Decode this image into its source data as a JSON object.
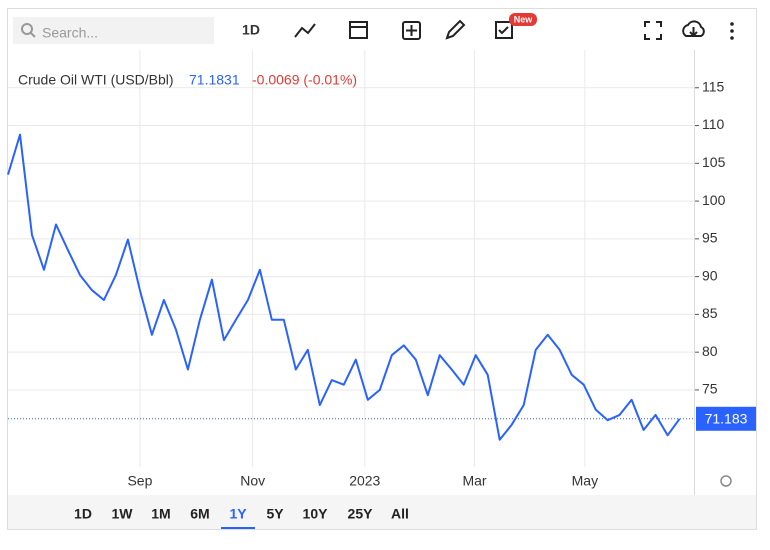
{
  "toolbar": {
    "search_placeholder": "Search...",
    "interval": "1D",
    "badge": "New"
  },
  "range_buttons": [
    "1D",
    "1W",
    "1M",
    "6M",
    "1Y",
    "5Y",
    "10Y",
    "25Y",
    "All"
  ],
  "active_range": "1Y",
  "chart_data": {
    "type": "line",
    "title": "Crude Oil WTI (USD/Bbl)",
    "last_value": 71.1831,
    "change": "-0.0069 (-0.01%)",
    "price_line": 71.183,
    "x": [
      0,
      1,
      2,
      3,
      4,
      5,
      6,
      7,
      8,
      9,
      10,
      11,
      12,
      13,
      14,
      15,
      16,
      17,
      18,
      19,
      20,
      21,
      22,
      23,
      24,
      25,
      26,
      27,
      28,
      29,
      30,
      31,
      32,
      33,
      34,
      35,
      36,
      37,
      38,
      39,
      40,
      41,
      42,
      43,
      44,
      45,
      46,
      47,
      48,
      49,
      50,
      51,
      52,
      53,
      54,
      55,
      56
    ],
    "series": [
      {
        "name": "Crude Oil WTI",
        "color": "#2962ff",
        "values": [
          103.5,
          108.8,
          95.5,
          90.9,
          96.9,
          93.5,
          90.2,
          88.2,
          86.9,
          90.2,
          94.9,
          88.2,
          82.3,
          86.9,
          83.0,
          77.7,
          84.3,
          89.6,
          81.6,
          84.3,
          86.9,
          90.9,
          84.3,
          84.3,
          77.7,
          80.3,
          73.0,
          76.3,
          75.7,
          79.0,
          73.7,
          75.0,
          79.6,
          80.9,
          79.0,
          74.3,
          79.6,
          77.7,
          75.7,
          79.6,
          77.0,
          68.4,
          70.4,
          73.0,
          80.3,
          82.3,
          80.3,
          77.0,
          75.7,
          72.4,
          71.0,
          71.7,
          73.7,
          69.7,
          71.7,
          69.0,
          71.18
        ]
      }
    ],
    "xlim": [
      0,
      57.2
    ],
    "xticks": [
      {
        "value": 11,
        "label": "Sep"
      },
      {
        "value": 20.4,
        "label": "Nov"
      },
      {
        "value": 29.75,
        "label": "2023"
      },
      {
        "value": 38.9,
        "label": "Mar"
      },
      {
        "value": 48.1,
        "label": "May"
      }
    ],
    "ylim": [
      64.8,
      120
    ],
    "yticks": [
      75,
      80,
      85,
      90,
      95,
      100,
      105,
      110,
      115
    ],
    "grid": true
  }
}
